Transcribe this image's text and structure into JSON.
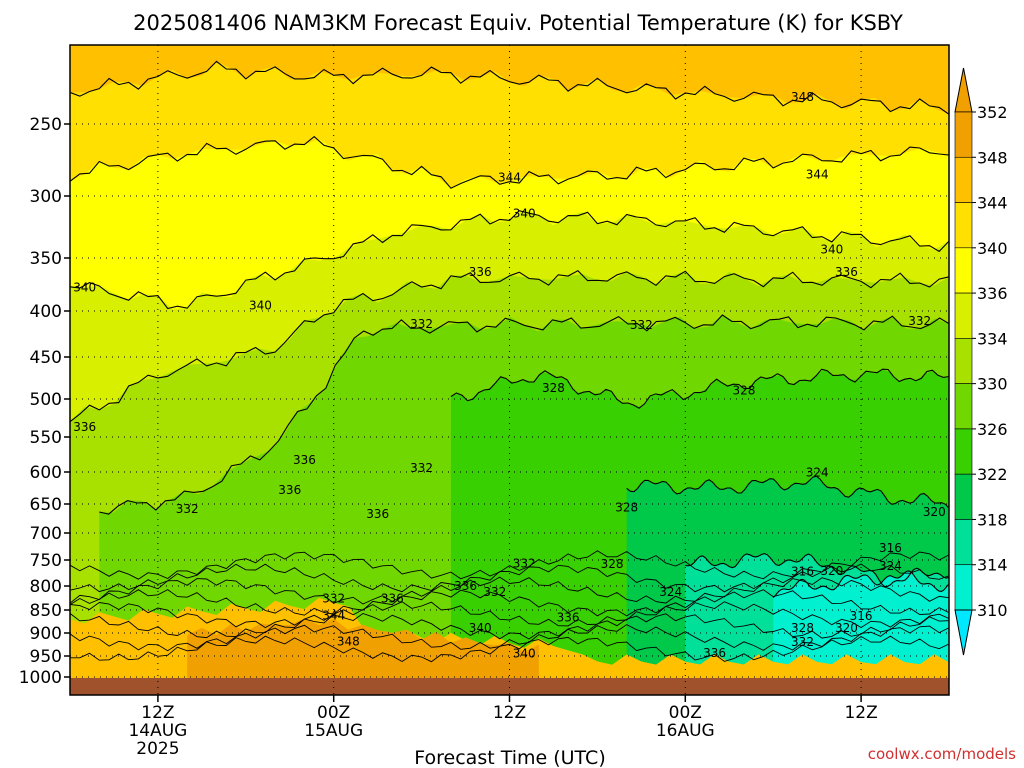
{
  "chart_data": {
    "type": "heatmap",
    "title": "2025081406 NAM3KM Forecast Equiv. Potential Temperature (K) for KSBY",
    "xlabel": "Forecast Time (UTC)",
    "ylabel": "",
    "y_axis": {
      "scale": "pressure",
      "inverted": true,
      "ticks": [
        250,
        300,
        350,
        400,
        450,
        500,
        550,
        600,
        650,
        700,
        750,
        800,
        850,
        900,
        950,
        1000
      ],
      "range": [
        1020,
        200
      ]
    },
    "x_axis": {
      "units": "hours from 2025-08-14 06Z",
      "range": [
        0,
        60
      ],
      "ticks": [
        {
          "hour": 6,
          "lines": [
            "12Z",
            "14AUG",
            "2025"
          ]
        },
        {
          "hour": 18,
          "lines": [
            "00Z",
            "15AUG"
          ]
        },
        {
          "hour": 30,
          "lines": [
            "12Z"
          ]
        },
        {
          "hour": 42,
          "lines": [
            "00Z",
            "16AUG"
          ]
        },
        {
          "hour": 54,
          "lines": [
            "12Z"
          ]
        }
      ]
    },
    "grid": true,
    "colorbar": {
      "position": "right",
      "levels": [
        310,
        314,
        318,
        322,
        326,
        330,
        334,
        336,
        340,
        344,
        348,
        352
      ],
      "labels": [
        "352",
        "348",
        "344",
        "340",
        "336",
        "334",
        "330",
        "326",
        "322",
        "318",
        "314",
        "310"
      ],
      "colors": [
        "#f0a000",
        "#ffc000",
        "#ffe000",
        "#ffff00",
        "#d8f000",
        "#a8e000",
        "#70d800",
        "#38d000",
        "#00c848",
        "#00e098",
        "#00f0d0",
        "#00e8ff"
      ]
    },
    "contour_interval": 2,
    "isolines": [
      {
        "value": 348,
        "pressure_by_hour": [
          [
            0,
            230
          ],
          [
            10,
            215
          ],
          [
            17,
            220
          ],
          [
            25,
            218
          ],
          [
            35,
            225
          ],
          [
            45,
            232
          ],
          [
            60,
            240
          ]
        ]
      },
      {
        "value": 344,
        "pressure_by_hour": [
          [
            0,
            285
          ],
          [
            8,
            270
          ],
          [
            16,
            262
          ],
          [
            26,
            290
          ],
          [
            38,
            285
          ],
          [
            48,
            276
          ],
          [
            60,
            268
          ]
        ]
      },
      {
        "value": 340,
        "pressure_by_hour": [
          [
            0,
            375
          ],
          [
            8,
            395
          ],
          [
            14,
            365
          ],
          [
            22,
            330
          ],
          [
            30,
            316
          ],
          [
            40,
            320
          ],
          [
            50,
            330
          ],
          [
            60,
            340
          ]
        ]
      },
      {
        "value": 336,
        "pressure_by_hour": [
          [
            0,
            530
          ],
          [
            6,
            470
          ],
          [
            14,
            440
          ],
          [
            18,
            395
          ],
          [
            26,
            370
          ],
          [
            36,
            368
          ],
          [
            46,
            370
          ],
          [
            60,
            372
          ]
        ]
      },
      {
        "value": 332,
        "pressure_by_hour": [
          [
            2,
            660
          ],
          [
            8,
            640
          ],
          [
            14,
            560
          ],
          [
            20,
            420
          ],
          [
            28,
            415
          ],
          [
            40,
            413
          ],
          [
            52,
            412
          ],
          [
            60,
            415
          ]
        ]
      },
      {
        "value": 328,
        "pressure_by_hour": [
          [
            26,
            500
          ],
          [
            32,
            470
          ],
          [
            38,
            505
          ],
          [
            46,
            480
          ],
          [
            54,
            470
          ],
          [
            60,
            475
          ]
        ]
      },
      {
        "value": 324,
        "pressure_by_hour": [
          [
            38,
            620
          ],
          [
            44,
            625
          ],
          [
            50,
            615
          ],
          [
            56,
            640
          ],
          [
            60,
            650
          ]
        ]
      },
      {
        "value": 320,
        "pressure_by_hour": [
          [
            42,
            760
          ],
          [
            48,
            745
          ],
          [
            52,
            760
          ],
          [
            56,
            790
          ],
          [
            60,
            770
          ]
        ]
      },
      {
        "value": 316,
        "pressure_by_hour": [
          [
            48,
            810
          ],
          [
            52,
            795
          ],
          [
            56,
            780
          ],
          [
            60,
            800
          ]
        ]
      }
    ],
    "contour_labels": [
      {
        "text": "348",
        "hour": 50,
        "p": 233
      },
      {
        "text": "344",
        "hour": 30,
        "p": 287
      },
      {
        "text": "344",
        "hour": 51,
        "p": 285
      },
      {
        "text": "340",
        "hour": 31,
        "p": 314
      },
      {
        "text": "340",
        "hour": 52,
        "p": 343
      },
      {
        "text": "340",
        "hour": 1,
        "p": 378
      },
      {
        "text": "340",
        "hour": 13,
        "p": 395
      },
      {
        "text": "336",
        "hour": 28,
        "p": 363
      },
      {
        "text": "336",
        "hour": 53,
        "p": 363
      },
      {
        "text": "332",
        "hour": 24,
        "p": 414
      },
      {
        "text": "332",
        "hour": 39,
        "p": 415
      },
      {
        "text": "332",
        "hour": 58,
        "p": 411
      },
      {
        "text": "328",
        "hour": 33,
        "p": 487
      },
      {
        "text": "328",
        "hour": 46,
        "p": 490
      },
      {
        "text": "336",
        "hour": 1,
        "p": 537
      },
      {
        "text": "336",
        "hour": 16,
        "p": 583
      },
      {
        "text": "336",
        "hour": 15,
        "p": 628
      },
      {
        "text": "332",
        "hour": 24,
        "p": 594
      },
      {
        "text": "324",
        "hour": 51,
        "p": 601
      },
      {
        "text": "332",
        "hour": 8,
        "p": 659
      },
      {
        "text": "336",
        "hour": 21,
        "p": 667
      },
      {
        "text": "328",
        "hour": 38,
        "p": 656
      },
      {
        "text": "320",
        "hour": 59,
        "p": 664
      },
      {
        "text": "316",
        "hour": 56,
        "p": 728
      },
      {
        "text": "332",
        "hour": 31,
        "p": 757
      },
      {
        "text": "328",
        "hour": 37,
        "p": 758
      },
      {
        "text": "316",
        "hour": 50,
        "p": 772
      },
      {
        "text": "320",
        "hour": 52,
        "p": 771
      },
      {
        "text": "324",
        "hour": 56,
        "p": 762
      },
      {
        "text": "336",
        "hour": 27,
        "p": 800
      },
      {
        "text": "332",
        "hour": 29,
        "p": 812
      },
      {
        "text": "324",
        "hour": 41,
        "p": 813
      },
      {
        "text": "332",
        "hour": 18,
        "p": 826
      },
      {
        "text": "336",
        "hour": 22,
        "p": 826
      },
      {
        "text": "344",
        "hour": 18,
        "p": 862
      },
      {
        "text": "336",
        "hour": 34,
        "p": 866
      },
      {
        "text": "316",
        "hour": 54,
        "p": 863
      },
      {
        "text": "340",
        "hour": 28,
        "p": 889
      },
      {
        "text": "328",
        "hour": 50,
        "p": 889
      },
      {
        "text": "320",
        "hour": 53,
        "p": 889
      },
      {
        "text": "348",
        "hour": 19,
        "p": 918
      },
      {
        "text": "332",
        "hour": 50,
        "p": 920
      },
      {
        "text": "340",
        "hour": 31,
        "p": 945
      },
      {
        "text": "336",
        "hour": 44,
        "p": 944
      }
    ]
  },
  "credit": "coolwx.com/models"
}
